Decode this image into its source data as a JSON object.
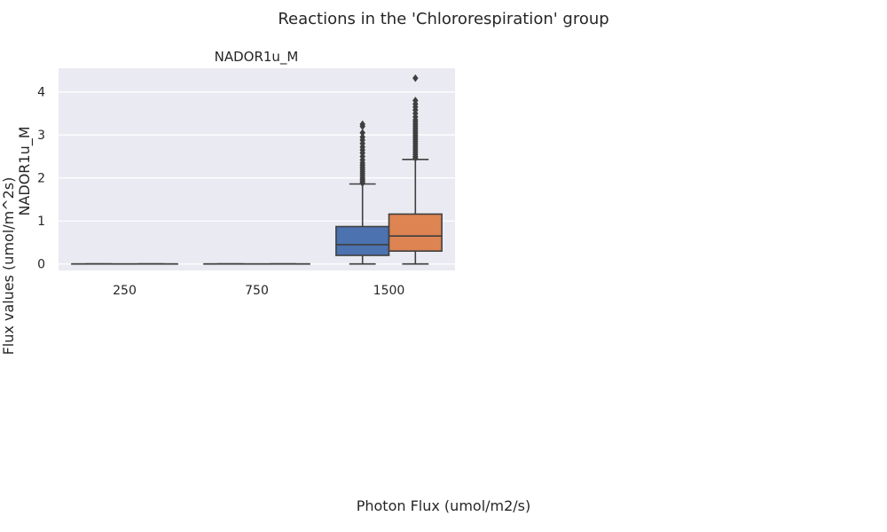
{
  "figure": {
    "suptitle": "Reactions in the 'Chlororespiration' group",
    "supylabel": "Flux values (umol/m^2s)",
    "supxlabel": "Photon Flux (umol/m2/s)"
  },
  "chart_data": {
    "type": "box",
    "title": "NADOR1u_M",
    "ylabel": "NADOR1u_M",
    "xlabel": "",
    "categories": [
      "250",
      "750",
      "1500"
    ],
    "yticks": [
      "0",
      "1",
      "2",
      "3",
      "4"
    ],
    "ylim": [
      -0.15,
      4.55
    ],
    "grid": true,
    "colors": {
      "background": "#eaeaf2",
      "grid": "#ffffff",
      "line": "#3f3f3f",
      "series_a": "#4c72b0",
      "series_b": "#dd8452"
    },
    "boxes": [
      {
        "category": "250",
        "slot": "a",
        "min": 0,
        "q1": 0,
        "median": 0,
        "q3": 0,
        "max": 0,
        "fill": "series_a",
        "outliers": []
      },
      {
        "category": "250",
        "slot": "b",
        "min": 0,
        "q1": 0,
        "median": 0,
        "q3": 0,
        "max": 0,
        "fill": "series_b",
        "outliers": []
      },
      {
        "category": "750",
        "slot": "a",
        "min": 0,
        "q1": 0,
        "median": 0,
        "q3": 0,
        "max": 0,
        "fill": "series_a",
        "outliers": []
      },
      {
        "category": "750",
        "slot": "b",
        "min": 0,
        "q1": 0,
        "median": 0,
        "q3": 0,
        "max": 0,
        "fill": "series_b",
        "outliers": []
      },
      {
        "category": "1500",
        "slot": "a",
        "min": 0,
        "q1": 0.2,
        "median": 0.45,
        "q3": 0.87,
        "max": 1.86,
        "fill": "series_a",
        "outliers": [
          1.88,
          1.92,
          1.96,
          2.0,
          2.05,
          2.1,
          2.15,
          2.2,
          2.25,
          2.3,
          2.35,
          2.42,
          2.5,
          2.58,
          2.65,
          2.72,
          2.8,
          2.88,
          2.95,
          3.05,
          3.2,
          3.25
        ]
      },
      {
        "category": "1500",
        "slot": "b",
        "min": 0,
        "q1": 0.3,
        "median": 0.65,
        "q3": 1.16,
        "max": 2.43,
        "fill": "series_b",
        "outliers": [
          2.46,
          2.5,
          2.55,
          2.6,
          2.65,
          2.7,
          2.75,
          2.8,
          2.85,
          2.9,
          2.95,
          3.0,
          3.05,
          3.1,
          3.15,
          3.2,
          3.25,
          3.3,
          3.35,
          3.42,
          3.5,
          3.58,
          3.65,
          3.72,
          3.8,
          4.32
        ]
      }
    ]
  }
}
